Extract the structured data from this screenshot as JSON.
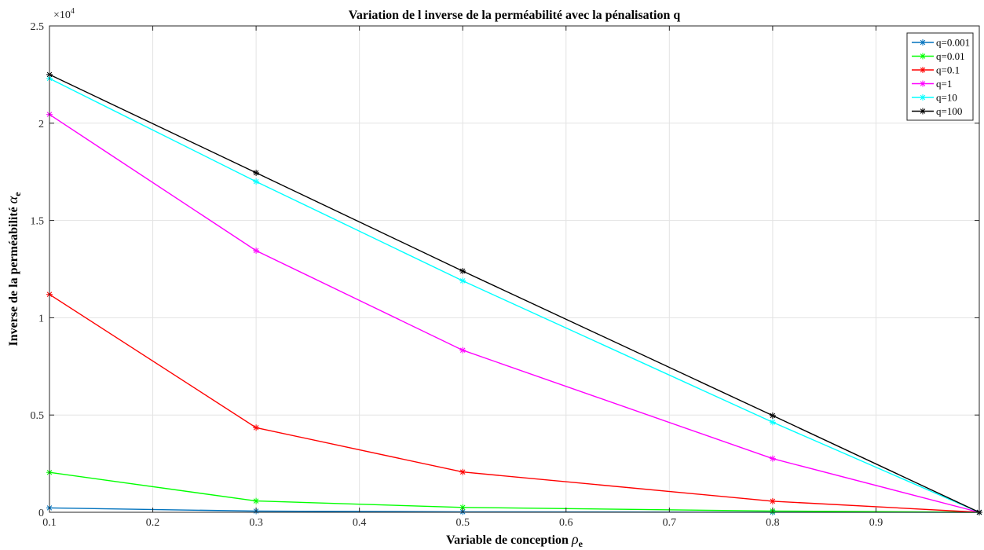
{
  "chart_data": {
    "type": "line",
    "title": "Variation de l inverse de la perméabilité avec la pénalisation q",
    "xlabel": "Variable de conception",
    "xlabel_symbol": "ρ",
    "xlabel_subscript": "e",
    "ylabel": "Inverse de la perméabilité",
    "ylabel_symbol": "α",
    "ylabel_subscript": "e",
    "y_exponent_label": "×10",
    "y_exponent_power": "4",
    "xlim": [
      0.1,
      1.0
    ],
    "ylim": [
      0,
      25000
    ],
    "xticks": [
      0.1,
      0.2,
      0.3,
      0.4,
      0.5,
      0.6,
      0.7,
      0.8,
      0.9
    ],
    "xtick_labels": [
      "0.1",
      "0.2",
      "0.3",
      "0.4",
      "0.5",
      "0.6",
      "0.7",
      "0.8",
      "0.9"
    ],
    "yticks": [
      0,
      5000,
      10000,
      15000,
      20000,
      25000
    ],
    "ytick_labels": [
      "0",
      "0.5",
      "1",
      "1.5",
      "2",
      "2.5"
    ],
    "grid": true,
    "legend_position": "top-right",
    "marker": "asterisk",
    "x": [
      0.1,
      0.3,
      0.5,
      0.8,
      1.0
    ],
    "series": [
      {
        "name": "q=0.001",
        "color": "#0072BD",
        "values": [
          225,
          60,
          25,
          6,
          0
        ]
      },
      {
        "name": "q=0.01",
        "color": "#00FF00",
        "values": [
          2050,
          580,
          250,
          65,
          0
        ]
      },
      {
        "name": "q=0.1",
        "color": "#FF0000",
        "values": [
          11200,
          4350,
          2070,
          570,
          0
        ]
      },
      {
        "name": "q=1",
        "color": "#FF00FF",
        "values": [
          20450,
          13450,
          8330,
          2760,
          0
        ]
      },
      {
        "name": "q=10",
        "color": "#00FFFF",
        "values": [
          22300,
          17000,
          11900,
          4630,
          0
        ]
      },
      {
        "name": "q=100",
        "color": "#000000",
        "values": [
          22500,
          17450,
          12400,
          4970,
          0
        ]
      }
    ]
  }
}
